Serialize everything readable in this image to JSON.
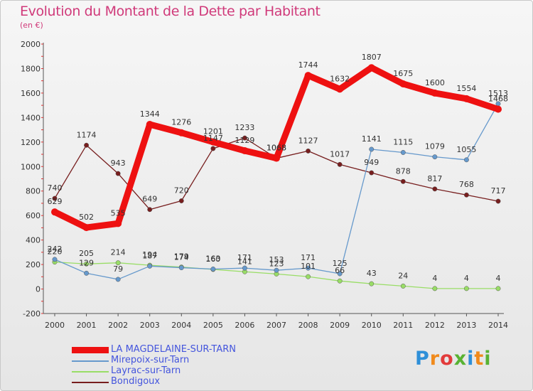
{
  "title": "Evolution du Montant de la Dette par Habitant",
  "subtitle": "(en €)",
  "logo_letters": [
    "P",
    "r",
    "o",
    "x",
    "i",
    "t",
    "i"
  ],
  "logo_colors": [
    "#2e8fd8",
    "#f08a1c",
    "#e23b3b",
    "#58b233",
    "#2e8fd8",
    "#f08a1c",
    "#58b233"
  ],
  "chart_data": {
    "type": "line",
    "x": [
      2000,
      2001,
      2002,
      2003,
      2004,
      2005,
      2006,
      2007,
      2008,
      2009,
      2010,
      2011,
      2012,
      2013,
      2014
    ],
    "ylim": [
      -200,
      2000
    ],
    "yticks": [
      -200,
      0,
      200,
      400,
      600,
      800,
      1000,
      1200,
      1400,
      1600,
      1800,
      2000
    ],
    "grid": false,
    "legend_position": "bottom-left",
    "series": [
      {
        "name": "LA MAGDELAINE-SUR-TARN",
        "color": "#ee1111",
        "values": [
          629,
          502,
          535,
          1344,
          1276,
          1201,
          1129,
          1068,
          1744,
          1632,
          1807,
          1675,
          1600,
          1554,
          1468
        ],
        "labels": [
          "629",
          "502",
          "535",
          "1344",
          "1276",
          "1201",
          "1129",
          "1068",
          "1744",
          "1632",
          "1807",
          "1675",
          "1600",
          "1554",
          "1468"
        ]
      },
      {
        "name": "Mirepoix-sur-Tarn",
        "color": "#6699cc",
        "values": [
          242,
          129,
          79,
          187,
          174,
          163,
          171,
          153,
          171,
          125,
          1141,
          1115,
          1079,
          1055,
          1513
        ],
        "labels": [
          "242",
          "129",
          "79",
          "187",
          "174",
          "163",
          "171",
          "153",
          "171",
          "125",
          "1141",
          "1115",
          "1079",
          "1055",
          "1513"
        ]
      },
      {
        "name": "Layrac-sur-Tarn",
        "color": "#99dd66",
        "values": [
          220,
          205,
          214,
          194,
          179,
          160,
          141,
          123,
          101,
          66,
          43,
          24,
          4,
          4,
          4
        ],
        "labels": [
          "220",
          "205",
          "214",
          "194",
          "179",
          "160",
          "141",
          "123",
          "101",
          "66",
          "43",
          "24",
          "4",
          "4",
          "4"
        ]
      },
      {
        "name": "Bondigoux",
        "color": "#771e1e",
        "values": [
          740,
          1174,
          943,
          649,
          720,
          1147,
          1233,
          1068,
          1127,
          1017,
          949,
          878,
          817,
          768,
          717
        ],
        "labels": [
          "740",
          "1174",
          "943",
          "649",
          "720",
          "1147",
          "1233",
          "1068",
          "1127",
          "1017",
          "949",
          "878",
          "817",
          "768",
          "717"
        ]
      }
    ]
  }
}
